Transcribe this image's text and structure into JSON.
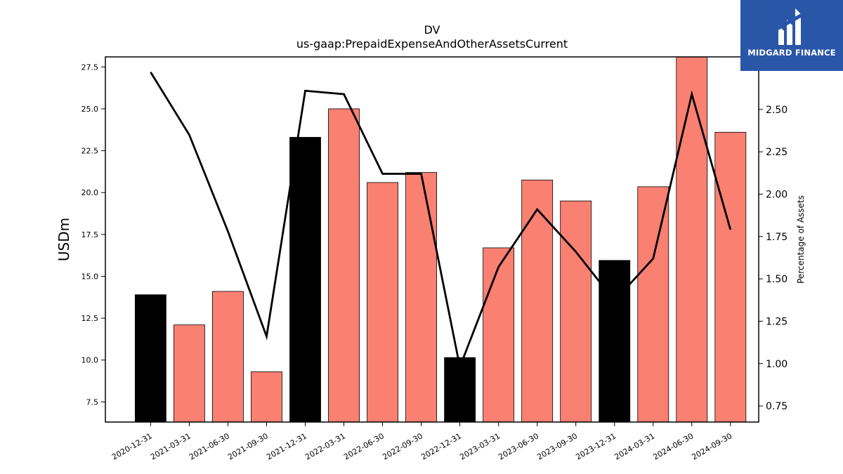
{
  "chart_data": {
    "type": "bar",
    "title": "DV",
    "subtitle": "us-gaap:PrepaidExpenseAndOtherAssetsCurrent",
    "ylabel": "USDm",
    "y2label": "Percentage of Assets",
    "categories": [
      "2020-12-31",
      "2021-03-31",
      "2021-06-30",
      "2021-09-30",
      "2021-12-31",
      "2022-03-31",
      "2022-06-30",
      "2022-09-30",
      "2022-12-31",
      "2023-03-31",
      "2023-06-30",
      "2023-09-30",
      "2023-12-31",
      "2024-03-31",
      "2024-06-30",
      "2024-09-30"
    ],
    "series": [
      {
        "values": [
          13.9,
          12.1,
          14.1,
          9.3,
          23.3,
          25.0,
          20.6,
          21.2,
          10.15,
          16.7,
          20.75,
          19.5,
          15.95,
          20.35,
          28.2,
          23.6
        ],
        "colors": [
          "#000000",
          "#fa8072",
          "#fa8072",
          "#fa8072",
          "#000000",
          "#fa8072",
          "#fa8072",
          "#fa8072",
          "#000000",
          "#fa8072",
          "#fa8072",
          "#fa8072",
          "#000000",
          "#fa8072",
          "#fa8072",
          "#fa8072"
        ]
      },
      {
        "type": "line",
        "axis": "right",
        "values": [
          2.72,
          2.35,
          1.78,
          1.16,
          2.61,
          2.59,
          2.12,
          2.12,
          0.98,
          1.57,
          1.91,
          1.66,
          1.37,
          1.62,
          2.59,
          1.79
        ],
        "color": "#000000"
      }
    ],
    "ylim": [
      6.3,
      28.1
    ],
    "y2lim": [
      0.655,
      2.81
    ],
    "yticks": [
      "7.5",
      "10.0",
      "12.5",
      "15.0",
      "17.5",
      "20.0",
      "22.5",
      "25.0",
      "27.5"
    ],
    "y2ticks": [
      "0.75",
      "1.00",
      "1.25",
      "1.50",
      "1.75",
      "2.00",
      "2.25",
      "2.50"
    ],
    "grid": false
  },
  "logo": {
    "text": "MIDGARD FINANCE"
  }
}
